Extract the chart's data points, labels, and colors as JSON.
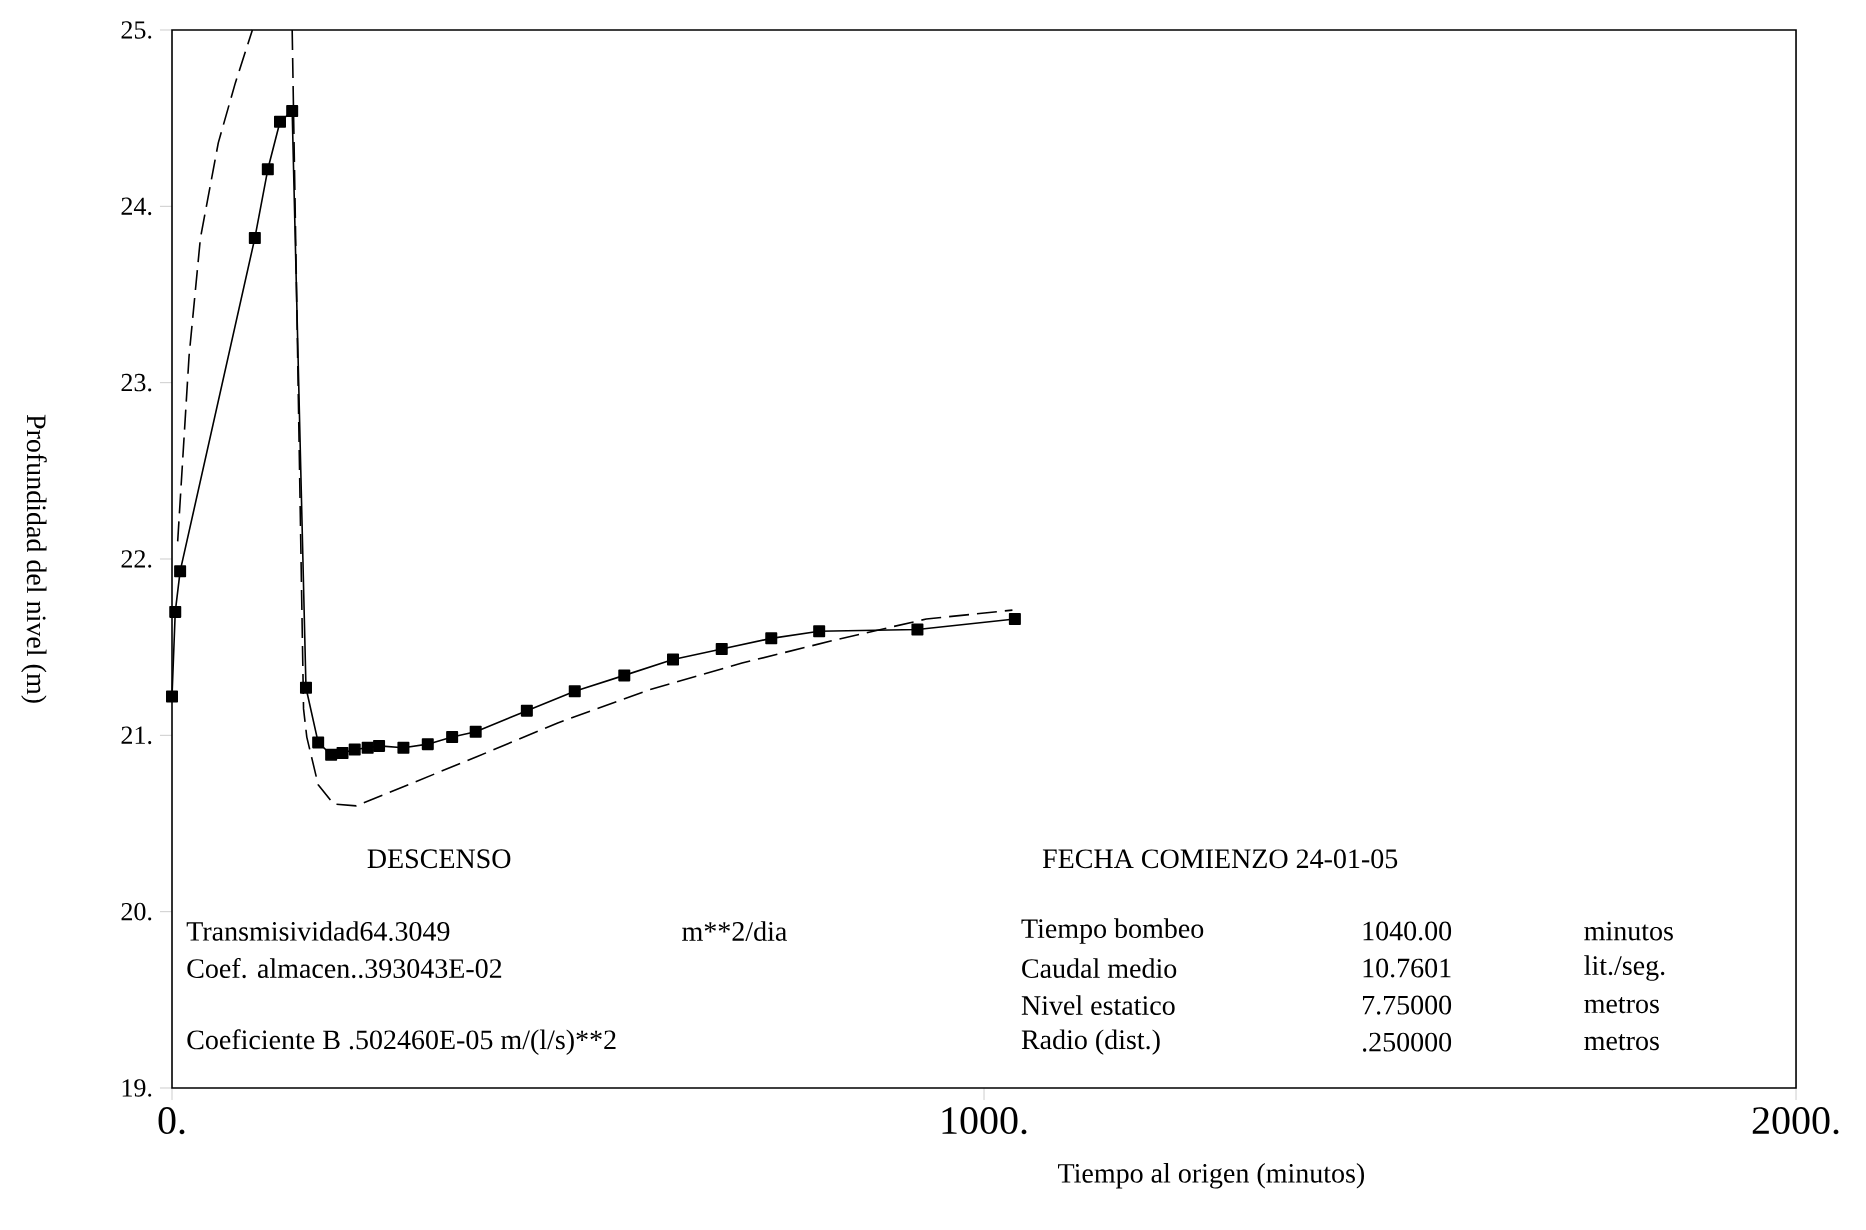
{
  "chart_data": {
    "type": "line",
    "xlabel": "Tiempo al origen (minutos)",
    "ylabel": "Profundidad del nivel (m)",
    "xlim": [
      0,
      2000
    ],
    "ylim": [
      19,
      25
    ],
    "xticks": [
      {
        "value": 0,
        "label": "0."
      },
      {
        "value": 1000,
        "label": "1000."
      },
      {
        "value": 2000,
        "label": "2000."
      }
    ],
    "yticks": [
      {
        "value": 19,
        "label": "19."
      },
      {
        "value": 20,
        "label": "20."
      },
      {
        "value": 21,
        "label": "21."
      },
      {
        "value": 22,
        "label": "22."
      },
      {
        "value": 23,
        "label": "23."
      },
      {
        "value": 24,
        "label": "24."
      },
      {
        "value": 25,
        "label": "25."
      }
    ],
    "series": [
      {
        "color": "#000000",
        "marker": "square",
        "line_style": "solid",
        "x": [
          0,
          4,
          10,
          102,
          118,
          133,
          148,
          165,
          180,
          196,
          210,
          225,
          241,
          255,
          285,
          315,
          345,
          374,
          437,
          496,
          557,
          617,
          677,
          738,
          797,
          918,
          1038
        ],
        "values": [
          21.22,
          21.7,
          21.93,
          23.82,
          24.21,
          24.48,
          24.54,
          21.27,
          20.96,
          20.89,
          20.9,
          20.92,
          20.93,
          20.94,
          20.93,
          20.95,
          20.99,
          21.02,
          21.14,
          21.25,
          21.34,
          21.43,
          21.49,
          21.55,
          21.59,
          21.6,
          21.66
        ]
      },
      {
        "color": "#000000",
        "marker": "none",
        "line_style": "dashed",
        "x": [
          7,
          21,
          35,
          57,
          78,
          99,
          120,
          148,
          162,
          166,
          180,
          199,
          227,
          291,
          376,
          475,
          589,
          702,
          816,
          929,
          1035
        ],
        "values": [
          22.1,
          23.15,
          23.82,
          24.36,
          24.7,
          25,
          null,
          25,
          21.15,
          20.99,
          20.72,
          20.61,
          20.6,
          20.72,
          20.88,
          21.07,
          21.26,
          21.41,
          21.54,
          21.66,
          21.71
        ]
      }
    ],
    "annotations": [
      "DESCENSO",
      "FECHA COMIENZO 24-01-05",
      "Transmisividad64.3049",
      "m**2/dia",
      "Coef. almacen..393043E-02",
      "Coeficiente B .502460E-05 m/(l/s)**2",
      "Tiempo bombeo",
      "1040.00",
      "minutos",
      "Caudal medio",
      "10.7601",
      "lit./seg.",
      "Nivel estatico",
      "7.75000",
      "metros",
      "Radio (dist.)",
      ".250000",
      "metros"
    ]
  }
}
